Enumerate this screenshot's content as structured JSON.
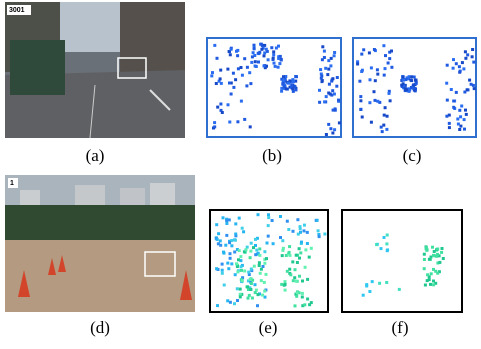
{
  "panels": [
    {
      "label": "(a)",
      "overlay": "3001"
    },
    {
      "label": "(b)"
    },
    {
      "label": "(c)"
    },
    {
      "label": "(d)",
      "overlay": "1"
    },
    {
      "label": "(e)"
    },
    {
      "label": "(f)"
    }
  ]
}
